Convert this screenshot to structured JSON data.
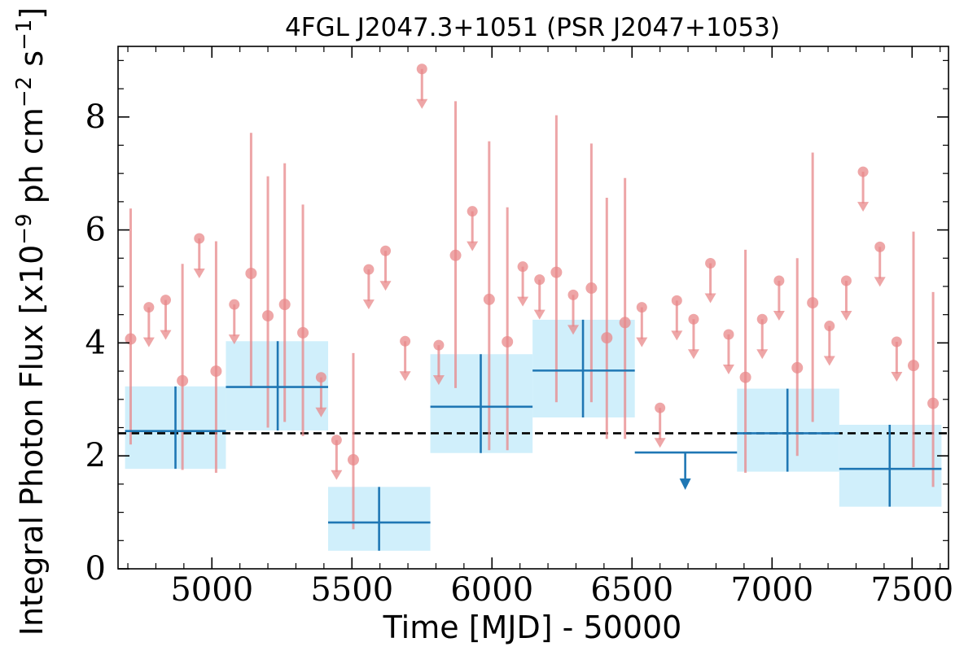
{
  "chart_data": {
    "type": "scatter",
    "title": "4FGL J2047.3+1051 (PSR J2047+1053)",
    "xlabel": "Time [MJD] - 50000",
    "ylabel": "Integral Photon Flux [x10",
    "ylabel_exp1": "−9",
    "ylabel_mid": " ph cm",
    "ylabel_exp2": "−2",
    "ylabel_mid2": " s",
    "ylabel_exp3": "−1",
    "ylabel_end": "]",
    "xlim": [
      4665,
      7630
    ],
    "ylim": [
      0,
      9.25
    ],
    "x_ticks": [
      5000,
      5500,
      6000,
      6500,
      7000,
      7500
    ],
    "y_ticks": [
      0,
      2,
      4,
      6,
      8
    ],
    "x_tick_labels": [
      "5000",
      "5500",
      "6000",
      "6500",
      "7000",
      "7500"
    ],
    "y_tick_labels": [
      "0",
      "2",
      "4",
      "6",
      "8"
    ],
    "grid": false,
    "mean_flux": 2.4,
    "colors": {
      "short_bins": "#e8888a",
      "long_bins": "#1f77b4",
      "long_bins_band": "#cdeefb",
      "mean_line": "#000000"
    },
    "series": [
      {
        "bin": "short",
        "detections": [
          {
            "x": 4710,
            "y": 4.07,
            "lo": 2.2,
            "hi": 6.38
          },
          {
            "x": 4895,
            "y": 3.33,
            "lo": 1.75,
            "hi": 5.4
          },
          {
            "x": 5015,
            "y": 3.5,
            "lo": 1.7,
            "hi": 5.8
          },
          {
            "x": 5140,
            "y": 5.23,
            "lo": 3.2,
            "hi": 7.72
          },
          {
            "x": 5200,
            "y": 4.48,
            "lo": 2.5,
            "hi": 6.95
          },
          {
            "x": 5260,
            "y": 4.68,
            "lo": 2.6,
            "hi": 7.18
          },
          {
            "x": 5325,
            "y": 4.18,
            "lo": 2.35,
            "hi": 6.45
          },
          {
            "x": 5505,
            "y": 1.93,
            "lo": 0.7,
            "hi": 3.82
          },
          {
            "x": 5870,
            "y": 5.55,
            "lo": 3.2,
            "hi": 8.28
          },
          {
            "x": 5990,
            "y": 4.77,
            "lo": 2.1,
            "hi": 7.57
          },
          {
            "x": 6055,
            "y": 4.02,
            "lo": 2.1,
            "hi": 6.4
          },
          {
            "x": 6230,
            "y": 5.25,
            "lo": 2.95,
            "hi": 8.03
          },
          {
            "x": 6355,
            "y": 4.97,
            "lo": 2.95,
            "hi": 7.53
          },
          {
            "x": 6410,
            "y": 4.09,
            "lo": 2.3,
            "hi": 6.57
          },
          {
            "x": 6475,
            "y": 4.36,
            "lo": 2.3,
            "hi": 6.92
          },
          {
            "x": 6905,
            "y": 3.39,
            "lo": 1.7,
            "hi": 5.65
          },
          {
            "x": 7090,
            "y": 3.56,
            "lo": 2.0,
            "hi": 5.5
          },
          {
            "x": 7145,
            "y": 4.71,
            "lo": 2.6,
            "hi": 7.37
          },
          {
            "x": 7505,
            "y": 3.6,
            "lo": 1.8,
            "hi": 5.97
          },
          {
            "x": 7575,
            "y": 2.93,
            "lo": 1.45,
            "hi": 4.9
          }
        ],
        "upper_limits": [
          {
            "x": 4775,
            "y": 4.63
          },
          {
            "x": 4835,
            "y": 4.76
          },
          {
            "x": 4955,
            "y": 5.85
          },
          {
            "x": 5080,
            "y": 4.68
          },
          {
            "x": 5390,
            "y": 3.39
          },
          {
            "x": 5445,
            "y": 2.28
          },
          {
            "x": 5560,
            "y": 5.3
          },
          {
            "x": 5620,
            "y": 5.63
          },
          {
            "x": 5690,
            "y": 4.03
          },
          {
            "x": 5750,
            "y": 8.85
          },
          {
            "x": 5810,
            "y": 3.96
          },
          {
            "x": 5930,
            "y": 6.33
          },
          {
            "x": 6110,
            "y": 5.35
          },
          {
            "x": 6170,
            "y": 5.12
          },
          {
            "x": 6290,
            "y": 4.85
          },
          {
            "x": 6535,
            "y": 4.63
          },
          {
            "x": 6600,
            "y": 2.85
          },
          {
            "x": 6660,
            "y": 4.75
          },
          {
            "x": 6720,
            "y": 4.42
          },
          {
            "x": 6780,
            "y": 5.41
          },
          {
            "x": 6845,
            "y": 4.15
          },
          {
            "x": 6965,
            "y": 4.42
          },
          {
            "x": 7025,
            "y": 5.1
          },
          {
            "x": 7205,
            "y": 4.3
          },
          {
            "x": 7265,
            "y": 5.1
          },
          {
            "x": 7325,
            "y": 7.03
          },
          {
            "x": 7385,
            "y": 5.7
          },
          {
            "x": 7445,
            "y": 4.02
          }
        ]
      },
      {
        "bin": "long",
        "detections": [
          {
            "x0": 4690,
            "x1": 5050,
            "xc": 4870,
            "y": 2.44,
            "lo": 1.77,
            "hi": 3.23
          },
          {
            "x0": 5050,
            "x1": 5415,
            "xc": 5235,
            "y": 3.22,
            "lo": 2.45,
            "hi": 4.03
          },
          {
            "x0": 5415,
            "x1": 5780,
            "xc": 5597,
            "y": 0.82,
            "lo": 0.32,
            "hi": 1.45
          },
          {
            "x0": 5780,
            "x1": 6145,
            "xc": 5960,
            "y": 2.87,
            "lo": 2.05,
            "hi": 3.8
          },
          {
            "x0": 6145,
            "x1": 6510,
            "xc": 6325,
            "y": 3.51,
            "lo": 2.68,
            "hi": 4.41
          },
          {
            "x0": 6875,
            "x1": 7240,
            "xc": 7055,
            "y": 2.4,
            "lo": 1.72,
            "hi": 3.19
          },
          {
            "x0": 7240,
            "x1": 7605,
            "xc": 7420,
            "y": 1.77,
            "lo": 1.1,
            "hi": 2.55
          }
        ],
        "upper_limits": [
          {
            "x0": 6510,
            "x1": 6875,
            "xc": 6690,
            "y": 2.06
          }
        ]
      }
    ]
  }
}
